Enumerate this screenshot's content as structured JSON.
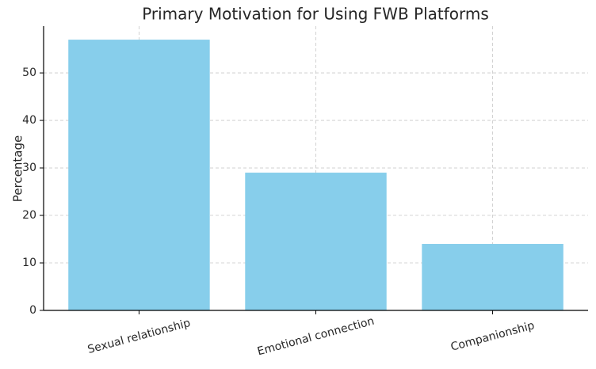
{
  "chart_data": {
    "type": "bar",
    "title": "Primary Motivation for Using FWB Platforms",
    "y_label": "Percentage",
    "categories": [
      "Sexual relationship",
      "Emotional connection",
      "Companionship"
    ],
    "values": [
      57,
      29,
      14
    ],
    "color": "#87ceeb",
    "ylim": [
      0,
      59.85
    ],
    "yticks": [
      0,
      10,
      20,
      30,
      40,
      50
    ],
    "grid": true
  }
}
